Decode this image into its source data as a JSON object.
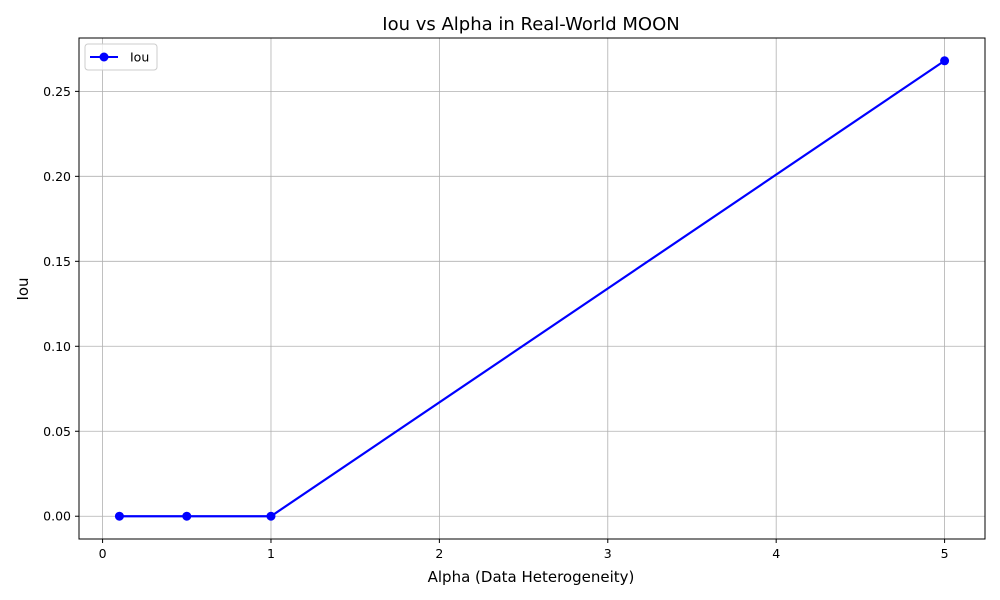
{
  "chart_data": {
    "type": "line",
    "title": "Iou vs Alpha in Real-World MOON",
    "xlabel": "Alpha (Data Heterogeneity)",
    "ylabel": "Iou",
    "xlim": [
      -0.14,
      5.24
    ],
    "ylim": [
      -0.0134,
      0.2814
    ],
    "xticks": [
      0,
      1,
      2,
      3,
      4,
      5
    ],
    "xtick_labels": [
      "0",
      "1",
      "2",
      "3",
      "4",
      "5"
    ],
    "yticks": [
      0.0,
      0.05,
      0.1,
      0.15,
      0.2,
      0.25
    ],
    "ytick_labels": [
      "0.00",
      "0.05",
      "0.10",
      "0.15",
      "0.20",
      "0.25"
    ],
    "grid": true,
    "legend_position": "upper-left",
    "series": [
      {
        "name": "Iou",
        "color": "#0000ff",
        "marker": "circle",
        "x": [
          0.1,
          0.5,
          1.0,
          5.0
        ],
        "y": [
          0.0,
          0.0,
          0.0,
          0.268
        ]
      }
    ]
  }
}
